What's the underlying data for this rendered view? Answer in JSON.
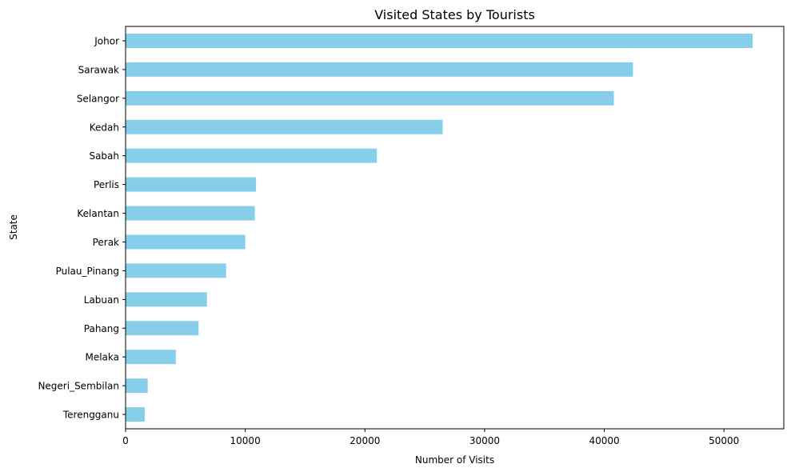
{
  "chart_data": {
    "type": "bar",
    "orientation": "horizontal",
    "title": "Visited States by Tourists",
    "xlabel": "Number of Visits",
    "ylabel": "State",
    "categories": [
      "Johor",
      "Sarawak",
      "Selangor",
      "Kedah",
      "Sabah",
      "Perlis",
      "Kelantan",
      "Perak",
      "Pulau_Pinang",
      "Labuan",
      "Pahang",
      "Melaka",
      "Negeri_Sembilan",
      "Terengganu"
    ],
    "values": [
      52400,
      42400,
      40800,
      26500,
      21000,
      10900,
      10800,
      10000,
      8400,
      6800,
      6100,
      4200,
      1850,
      1600
    ],
    "xlim": [
      0,
      55000
    ],
    "xticks": [
      0,
      10000,
      20000,
      30000,
      40000,
      50000
    ],
    "grid": false,
    "bar_color": "#87ceeb"
  }
}
